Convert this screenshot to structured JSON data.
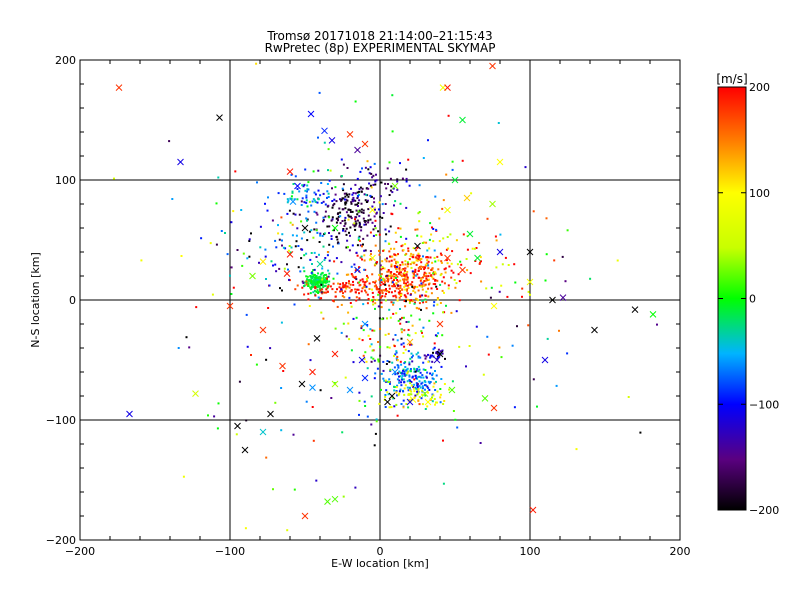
{
  "chart_data": {
    "type": "scatter",
    "title": "Tromsø 20171018 21:14:00–21:15:43",
    "subtitle": "RwPretec (8p) EXPERIMENTAL SKYMAP",
    "xlabel": "E-W location [km]",
    "ylabel": "N-S location [km]",
    "xlim": [
      -200,
      200
    ],
    "ylim": [
      -200,
      200
    ],
    "x_ticks": [
      -200,
      -100,
      0,
      100,
      200
    ],
    "y_ticks": [
      -200,
      -100,
      0,
      100,
      200
    ],
    "x_tick_labels": [
      "−200",
      "−100",
      "0",
      "100",
      "200"
    ],
    "y_tick_labels": [
      "−200",
      "−100",
      "0",
      "100",
      "200"
    ],
    "grid": true,
    "colorbar": {
      "label": "[m/s]",
      "range": [
        -200,
        200
      ],
      "ticks": [
        -200,
        -100,
        0,
        100,
        200
      ],
      "tick_labels": [
        "−200",
        "−100",
        "0",
        "100",
        "200"
      ]
    },
    "clusters": [
      {
        "cx": -42,
        "cy": 15,
        "sx": 4,
        "sy": 4,
        "n": 170,
        "v": -10,
        "vs": 8
      },
      {
        "cx": 15,
        "cy": 20,
        "sx": 16,
        "sy": 12,
        "n": 380,
        "v": 170,
        "vs": 45
      },
      {
        "cx": -20,
        "cy": 10,
        "sx": 18,
        "sy": 5,
        "n": 120,
        "v": 185,
        "vs": 20
      },
      {
        "cx": -20,
        "cy": 70,
        "sx": 10,
        "sy": 12,
        "n": 160,
        "v": -175,
        "vs": 30
      },
      {
        "cx": -45,
        "cy": 85,
        "sx": 12,
        "sy": 8,
        "n": 70,
        "v": -70,
        "vs": 40
      },
      {
        "cx": -5,
        "cy": 95,
        "sx": 12,
        "sy": 10,
        "n": 80,
        "v": -140,
        "vs": 50
      },
      {
        "cx": 20,
        "cy": -65,
        "sx": 10,
        "sy": 10,
        "n": 180,
        "v": -75,
        "vs": 30
      },
      {
        "cx": 25,
        "cy": -80,
        "sx": 10,
        "sy": 6,
        "n": 60,
        "v": 90,
        "vs": 30
      },
      {
        "cx": 10,
        "cy": -20,
        "sx": 20,
        "sy": 30,
        "n": 170,
        "v": 20,
        "vs": 120
      },
      {
        "cx": -45,
        "cy": 40,
        "sx": 25,
        "sy": 15,
        "n": 130,
        "v": -120,
        "vs": 90
      },
      {
        "cx": 35,
        "cy": 40,
        "sx": 25,
        "sy": 18,
        "n": 90,
        "v": 140,
        "vs": 80
      },
      {
        "cx": 0,
        "cy": 0,
        "sx": 75,
        "sy": 80,
        "n": 230,
        "v": 0,
        "vs": 130
      },
      {
        "cx": 38,
        "cy": -45,
        "sx": 3,
        "sy": 3,
        "n": 25,
        "v": -120,
        "vs": 20
      }
    ],
    "x_markers": [
      [
        -174,
        177,
        180
      ],
      [
        -107,
        152,
        -200
      ],
      [
        -133,
        115,
        -110
      ],
      [
        -60,
        107,
        190
      ],
      [
        -55,
        95,
        -100
      ],
      [
        -58,
        82,
        -60
      ],
      [
        -46,
        155,
        -100
      ],
      [
        -37,
        141,
        -90
      ],
      [
        -32,
        133,
        -110
      ],
      [
        -20,
        138,
        180
      ],
      [
        -15,
        125,
        -140
      ],
      [
        -10,
        130,
        180
      ],
      [
        42,
        177,
        90
      ],
      [
        45,
        177,
        190
      ],
      [
        75,
        195,
        180
      ],
      [
        80,
        115,
        100
      ],
      [
        55,
        150,
        -10
      ],
      [
        75,
        80,
        40
      ],
      [
        50,
        100,
        -10
      ],
      [
        45,
        75,
        90
      ],
      [
        58,
        85,
        120
      ],
      [
        -40,
        30,
        -30
      ],
      [
        -60,
        38,
        190
      ],
      [
        -78,
        32,
        110
      ],
      [
        -85,
        20,
        30
      ],
      [
        -100,
        -5,
        180
      ],
      [
        -78,
        -25,
        180
      ],
      [
        -65,
        -55,
        180
      ],
      [
        -42,
        -32,
        -200
      ],
      [
        -30,
        -45,
        190
      ],
      [
        -52,
        -70,
        -200
      ],
      [
        -45,
        -73,
        -60
      ],
      [
        -30,
        -70,
        40
      ],
      [
        -20,
        -75,
        -60
      ],
      [
        -10,
        -65,
        -90
      ],
      [
        -12,
        -50,
        -110
      ],
      [
        -123,
        -78,
        60
      ],
      [
        -167,
        -95,
        -110
      ],
      [
        -95,
        -105,
        -200
      ],
      [
        -90,
        -125,
        -200
      ],
      [
        -78,
        -110,
        -40
      ],
      [
        -73,
        -95,
        -200
      ],
      [
        -35,
        -168,
        20
      ],
      [
        -30,
        -166,
        20
      ],
      [
        -50,
        -180,
        180
      ],
      [
        100,
        40,
        -200
      ],
      [
        100,
        15,
        90
      ],
      [
        115,
        0,
        -200
      ],
      [
        122,
        2,
        -140
      ],
      [
        110,
        -50,
        -110
      ],
      [
        143,
        -25,
        -200
      ],
      [
        170,
        -8,
        -200
      ],
      [
        182,
        -12,
        0
      ],
      [
        102,
        -175,
        190
      ],
      [
        76,
        -90,
        180
      ],
      [
        70,
        -82,
        20
      ],
      [
        48,
        -75,
        20
      ],
      [
        32,
        -85,
        100
      ],
      [
        22,
        -83,
        100
      ],
      [
        30,
        -78,
        40
      ],
      [
        40,
        -45,
        -200
      ],
      [
        38,
        -50,
        -120
      ],
      [
        10,
        -60,
        -60
      ],
      [
        5,
        -85,
        -200
      ],
      [
        8,
        -80,
        -200
      ],
      [
        20,
        -85,
        -110
      ],
      [
        -5,
        75,
        100
      ],
      [
        10,
        95,
        30
      ],
      [
        60,
        55,
        -10
      ],
      [
        45,
        35,
        180
      ],
      [
        55,
        25,
        180
      ],
      [
        -30,
        60,
        0
      ],
      [
        -50,
        60,
        -200
      ],
      [
        -62,
        22,
        190
      ],
      [
        -5,
        35,
        90
      ],
      [
        25,
        45,
        -200
      ],
      [
        40,
        -20,
        180
      ],
      [
        80,
        40,
        -110
      ],
      [
        -10,
        -20,
        -60
      ],
      [
        20,
        -35,
        130
      ],
      [
        -15,
        25,
        -90
      ],
      [
        76,
        -5,
        100
      ],
      [
        65,
        35,
        -10
      ],
      [
        -45,
        -60,
        190
      ]
    ]
  }
}
